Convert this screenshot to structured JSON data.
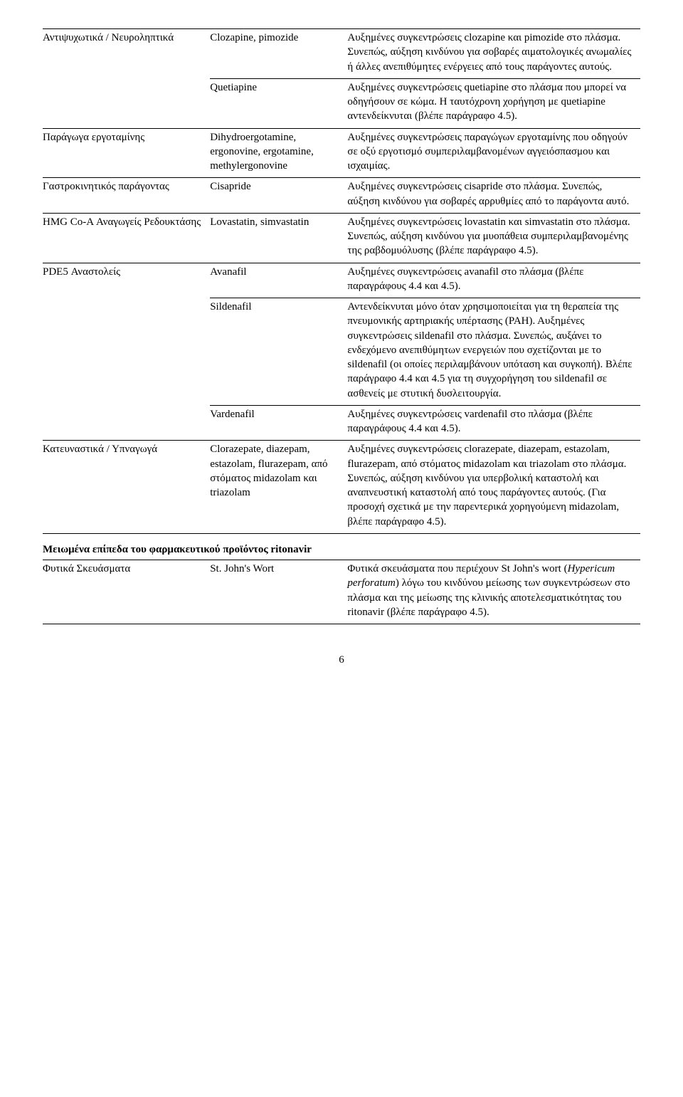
{
  "rows": [
    {
      "c1": "Αντιψυχωτικά / Νευροληπτικά",
      "c2": "Clozapine, pimozide",
      "c3": "Αυξημένες συγκεντρώσεις clozapine και pimozide στο πλάσμα. Συνεπώς, αύξηση κινδύνου για σοβαρές αιματολογικές ανωμαλίες ή άλλες ανεπιθύμητες ενέργειες από τους παράγοντες αυτούς.",
      "top_border": true
    },
    {
      "c1": "",
      "c2": "Quetiapine",
      "c3": "Αυξημένες συγκεντρώσεις quetiapine στο πλάσμα που μπορεί να οδηγήσουν σε κώμα. Η ταυτόχρονη χορήγηση με quetiapine αντενδείκνυται (βλέπε παράγραφο 4.5).",
      "top_border": true,
      "c2_border": true
    },
    {
      "c1": "Παράγωγα εργοταμίνης",
      "c2": "Dihydroergotamine, ergonovine, ergotamine, methylergonovine",
      "c3": "Αυξημένες συγκεντρώσεις παραγώγων εργοταμίνης που οδηγούν σε οξύ εργοτισμό συμπεριλαμβανομένων αγγειόσπασμου και ισχαιμίας.",
      "top_border": true
    },
    {
      "c1": "Γαστροκινητικός παράγοντας",
      "c2": "Cisapride",
      "c3": "Αυξημένες συγκεντρώσεις cisapride στο πλάσμα. Συνεπώς, αύξηση κινδύνου για σοβαρές αρρυθμίες από το παράγοντα αυτό.",
      "top_border": true
    },
    {
      "c1": "HMG Co-A Αναγωγείς Ρεδουκτάσης",
      "c2": "Lovastatin, simvastatin",
      "c3": "Αυξημένες συγκεντρώσεις lovastatin και simvastatin στο πλάσμα. Συνεπώς, αύξηση κινδύνου για μυοπάθεια συμπεριλαμβανομένης της ραβδομυόλυσης (βλέπε παράγραφο 4.5).",
      "top_border": true
    },
    {
      "c1": "PDE5 Αναστολείς",
      "c2": "Avanafil",
      "c3": "Αυξημένες συγκεντρώσεις avanafil στο πλάσμα (βλέπε παραγράφους 4.4 και 4.5).",
      "top_border": true
    },
    {
      "c1": "",
      "c2": "Sildenafil",
      "c3": "Αντενδείκνυται μόνο όταν χρησιμοποιείται για τη θεραπεία της πνευμονικής αρτηριακής υπέρτασης (PAH). Αυξημένες συγκεντρώσεις sildenafil στο πλάσμα. Συνεπώς, αυξάνει το ενδεχόμενο ανεπιθύμητων ενεργειών που σχετίζονται με το sildenafil (οι οποίες περιλαμβάνουν υπόταση και συγκοπή). Βλέπε παράγραφο 4.4 και 4.5 για τη συγχορήγηση του sildenafil σε ασθενείς με στυτική δυσλειτουργία.",
      "top_border": true,
      "c2_border": true
    },
    {
      "c1": "",
      "c2": "Vardenafil",
      "c3": "Αυξημένες συγκεντρώσεις vardenafil στο πλάσμα (βλέπε παραγράφους 4.4 και 4.5).",
      "top_border": true,
      "c2_border": true
    },
    {
      "c1": "Κατευναστικά / Υπναγωγά",
      "c2": "Clorazepate, diazepam, estazolam, flurazepam, από στόματος midazolam και triazolam",
      "c3": "Αυξημένες συγκεντρώσεις clorazepate, diazepam, estazolam, flurazepam, από στόματος midazolam και triazolam στο πλάσμα. Συνεπώς, αύξηση κινδύνου για υπερβολική καταστολή και αναπνευστική καταστολή από τους παράγοντες αυτούς. (Για προσοχή σχετικά με την παρεντερικά χορηγούμενη midazolam, βλέπε παράγραφο 4.5).",
      "top_border": true,
      "bottom_border": true
    }
  ],
  "section_header": "Μειωμένα επίπεδα του φαρμακευτικού προϊόντος ritonavir",
  "row2": {
    "c1": "Φυτικά Σκευάσματα",
    "c2": "St. John's Wort",
    "c3_prefix": "Φυτικά σκευάσματα που περιέχουν St John's wort (",
    "c3_italic": "Hypericum perforatum",
    "c3_suffix": ") λόγω του κινδύνου μείωσης των συγκεντρώσεων στο πλάσμα και της μείωσης της κλινικής αποτελεσματικότητας του ritonavir (βλέπε παράγραφο 4.5)."
  },
  "page_number": "6"
}
